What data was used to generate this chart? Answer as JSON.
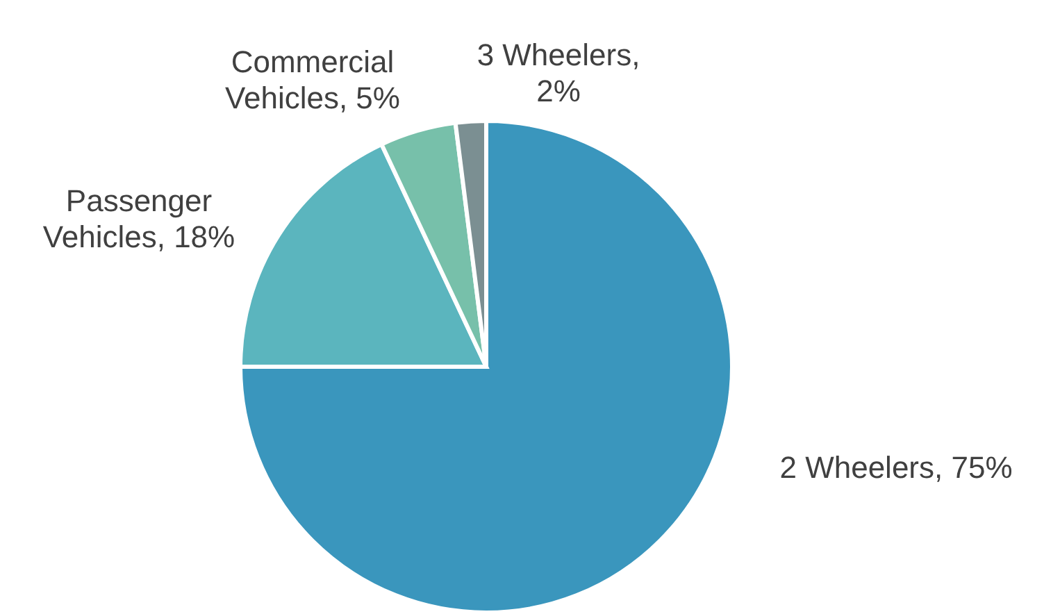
{
  "chart_data": {
    "type": "pie",
    "categories": [
      "2 Wheelers, 75%",
      "Passenger Vehicles, 18%",
      "Commercial Vehicles, 5%",
      "3 Wheelers, 2%"
    ],
    "values": [
      75,
      18,
      5,
      2
    ],
    "colors": [
      "#3a96bd",
      "#5bb5be",
      "#77c0aa",
      "#7b8f92"
    ]
  }
}
